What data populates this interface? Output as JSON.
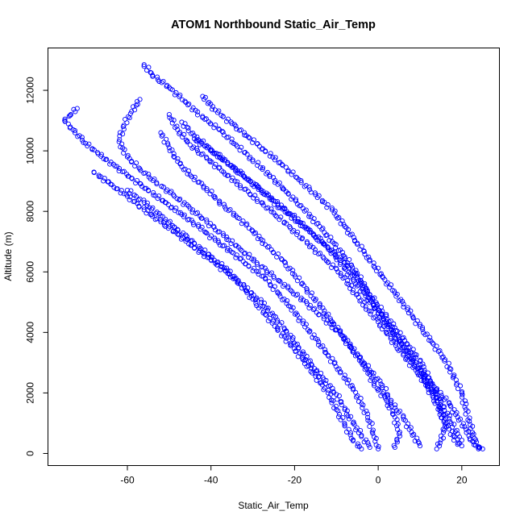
{
  "chart_data": {
    "type": "scatter",
    "title": "ATOM1 Northbound Static_Air_Temp",
    "xlabel": "Static_Air_Temp",
    "ylabel": "Altitude (m)",
    "xlim": [
      -79,
      29
    ],
    "ylim": [
      -400,
      13400
    ],
    "xticks": [
      "-60",
      "-40",
      "-20",
      "0",
      "20"
    ],
    "yticks": [
      "0",
      "2000",
      "4000",
      "6000",
      "8000",
      "10000",
      "12000"
    ],
    "marker": "open-circle",
    "color": "#0000ff",
    "grid": false,
    "series": [
      {
        "points": [
          [
            -56,
            12850
          ],
          [
            -54,
            12500
          ],
          [
            -50,
            12100
          ],
          [
            -46,
            11600
          ],
          [
            -42,
            11100
          ],
          [
            -38,
            10700
          ],
          [
            -34,
            10200
          ],
          [
            -30,
            9700
          ],
          [
            -26,
            9200
          ],
          [
            -22,
            8650
          ],
          [
            -18,
            8100
          ],
          [
            -14,
            7500
          ],
          [
            -11,
            7000
          ],
          [
            -8,
            6500
          ],
          [
            -5,
            5950
          ],
          [
            -3,
            5450
          ],
          [
            -1,
            4900
          ],
          [
            2,
            4300
          ],
          [
            5,
            3700
          ],
          [
            8,
            3100
          ],
          [
            11,
            2600
          ],
          [
            14,
            2100
          ],
          [
            17,
            1650
          ],
          [
            19,
            1200
          ],
          [
            21,
            800
          ],
          [
            22,
            450
          ],
          [
            24,
            200
          ],
          [
            25,
            150
          ]
        ]
      },
      {
        "points": [
          [
            -72,
            11400
          ],
          [
            -75,
            11000
          ],
          [
            -73,
            10700
          ],
          [
            -70,
            10250
          ],
          [
            -67,
            9900
          ],
          [
            -63,
            9500
          ],
          [
            -59,
            9100
          ],
          [
            -55,
            8700
          ],
          [
            -51,
            8300
          ],
          [
            -47,
            7900
          ],
          [
            -43,
            7500
          ],
          [
            -39,
            7050
          ],
          [
            -35,
            6650
          ],
          [
            -31,
            6200
          ],
          [
            -27,
            5800
          ],
          [
            -24,
            5300
          ],
          [
            -21,
            4850
          ],
          [
            -18,
            4300
          ],
          [
            -15,
            3800
          ],
          [
            -12,
            3250
          ],
          [
            -9,
            2700
          ],
          [
            -6,
            2150
          ],
          [
            -4,
            1650
          ],
          [
            -2,
            1050
          ],
          [
            -1,
            550
          ],
          [
            0,
            150
          ]
        ]
      },
      {
        "points": [
          [
            -68,
            9300
          ],
          [
            -64,
            8900
          ],
          [
            -60,
            8500
          ],
          [
            -56,
            8050
          ],
          [
            -52,
            7650
          ],
          [
            -48,
            7250
          ],
          [
            -44,
            6800
          ],
          [
            -40,
            6400
          ],
          [
            -36,
            5950
          ],
          [
            -32,
            5500
          ],
          [
            -28,
            5000
          ],
          [
            -25,
            4550
          ],
          [
            -22,
            4050
          ],
          [
            -19,
            3500
          ],
          [
            -16,
            2950
          ],
          [
            -13,
            2450
          ],
          [
            -10,
            1950
          ],
          [
            -8,
            1450
          ],
          [
            -6,
            1000
          ],
          [
            -4,
            600
          ],
          [
            -2,
            200
          ]
        ]
      },
      {
        "points": [
          [
            -57,
            11700
          ],
          [
            -59,
            11300
          ],
          [
            -61,
            10800
          ],
          [
            -62,
            10300
          ],
          [
            -60,
            9800
          ],
          [
            -57,
            9400
          ],
          [
            -53,
            8950
          ],
          [
            -49,
            8550
          ],
          [
            -45,
            8100
          ],
          [
            -41,
            7650
          ],
          [
            -37,
            7200
          ],
          [
            -33,
            6750
          ],
          [
            -29,
            6300
          ],
          [
            -25,
            5850
          ],
          [
            -21,
            5400
          ],
          [
            -17,
            4950
          ],
          [
            -13,
            4450
          ],
          [
            -9,
            3950
          ],
          [
            -6,
            3400
          ],
          [
            -3,
            2850
          ],
          [
            -1,
            2300
          ],
          [
            2,
            1750
          ],
          [
            4,
            1200
          ],
          [
            5,
            650
          ],
          [
            4,
            200
          ]
        ]
      },
      {
        "points": [
          [
            -50,
            11200
          ],
          [
            -48,
            10700
          ],
          [
            -45,
            10200
          ],
          [
            -41,
            9750
          ],
          [
            -37,
            9300
          ],
          [
            -33,
            8850
          ],
          [
            -29,
            8400
          ],
          [
            -25,
            7950
          ],
          [
            -21,
            7450
          ],
          [
            -17,
            6950
          ],
          [
            -13,
            6450
          ],
          [
            -9,
            5950
          ],
          [
            -6,
            5400
          ],
          [
            -3,
            4850
          ],
          [
            0,
            4350
          ],
          [
            3,
            3800
          ],
          [
            6,
            3250
          ],
          [
            9,
            2750
          ],
          [
            12,
            2200
          ],
          [
            15,
            1700
          ],
          [
            17,
            1150
          ],
          [
            19,
            650
          ],
          [
            20,
            250
          ]
        ]
      },
      {
        "points": [
          [
            -44,
            10400
          ],
          [
            -40,
            10000
          ],
          [
            -36,
            9600
          ],
          [
            -32,
            9150
          ],
          [
            -28,
            8700
          ],
          [
            -24,
            8200
          ],
          [
            -20,
            7750
          ],
          [
            -16,
            7300
          ],
          [
            -12,
            6800
          ],
          [
            -8,
            6300
          ],
          [
            -5,
            5800
          ],
          [
            -2,
            5250
          ],
          [
            1,
            4700
          ],
          [
            4,
            4150
          ],
          [
            7,
            3600
          ],
          [
            10,
            3050
          ],
          [
            12,
            2500
          ],
          [
            14,
            1950
          ],
          [
            15,
            1400
          ],
          [
            16,
            900
          ],
          [
            15,
            450
          ],
          [
            14,
            150
          ]
        ]
      },
      {
        "points": [
          [
            -52,
            10600
          ],
          [
            -50,
            10100
          ],
          [
            -48,
            9650
          ],
          [
            -45,
            9200
          ],
          [
            -41,
            8750
          ],
          [
            -38,
            8300
          ],
          [
            -34,
            7850
          ],
          [
            -30,
            7350
          ],
          [
            -27,
            6900
          ],
          [
            -23,
            6400
          ],
          [
            -20,
            5900
          ],
          [
            -17,
            5400
          ],
          [
            -14,
            4900
          ],
          [
            -11,
            4350
          ],
          [
            -8,
            3800
          ],
          [
            -5,
            3250
          ],
          [
            -2,
            2750
          ],
          [
            1,
            2250
          ],
          [
            3,
            1700
          ],
          [
            6,
            1200
          ],
          [
            8,
            700
          ],
          [
            10,
            250
          ]
        ]
      },
      {
        "points": [
          [
            -42,
            11800
          ],
          [
            -39,
            11350
          ],
          [
            -35,
            10900
          ],
          [
            -31,
            10450
          ],
          [
            -27,
            10000
          ],
          [
            -23,
            9550
          ],
          [
            -19,
            9050
          ],
          [
            -15,
            8550
          ],
          [
            -11,
            8050
          ],
          [
            -8,
            7500
          ],
          [
            -5,
            6950
          ],
          [
            -2,
            6400
          ],
          [
            1,
            5850
          ],
          [
            4,
            5300
          ],
          [
            7,
            4750
          ],
          [
            10,
            4200
          ],
          [
            13,
            3650
          ],
          [
            16,
            3100
          ],
          [
            18,
            2550
          ],
          [
            20,
            2000
          ],
          [
            21,
            1450
          ],
          [
            22,
            950
          ],
          [
            23,
            500
          ],
          [
            24,
            150
          ]
        ]
      },
      {
        "points": [
          [
            -60,
            8700
          ],
          [
            -56,
            8300
          ],
          [
            -52,
            7850
          ],
          [
            -48,
            7400
          ],
          [
            -44,
            6950
          ],
          [
            -40,
            6500
          ],
          [
            -36,
            6050
          ],
          [
            -33,
            5600
          ],
          [
            -30,
            5100
          ],
          [
            -27,
            4600
          ],
          [
            -24,
            4100
          ],
          [
            -21,
            3600
          ],
          [
            -18,
            3100
          ],
          [
            -15,
            2550
          ],
          [
            -12,
            2000
          ],
          [
            -10,
            1450
          ],
          [
            -8,
            950
          ],
          [
            -6,
            450
          ],
          [
            -4,
            150
          ]
        ]
      },
      {
        "points": [
          [
            -47,
            10950
          ],
          [
            -44,
            10500
          ],
          [
            -40,
            10050
          ],
          [
            -36,
            9600
          ],
          [
            -32,
            9150
          ],
          [
            -28,
            8700
          ],
          [
            -24,
            8250
          ],
          [
            -20,
            7800
          ],
          [
            -16,
            7300
          ],
          [
            -12,
            6800
          ],
          [
            -9,
            6300
          ],
          [
            -6,
            5750
          ],
          [
            -3,
            5200
          ],
          [
            0,
            4650
          ],
          [
            3,
            4100
          ],
          [
            6,
            3550
          ],
          [
            9,
            3000
          ],
          [
            11,
            2450
          ],
          [
            13,
            1900
          ],
          [
            15,
            1350
          ],
          [
            17,
            800
          ],
          [
            19,
            300
          ]
        ]
      }
    ]
  }
}
